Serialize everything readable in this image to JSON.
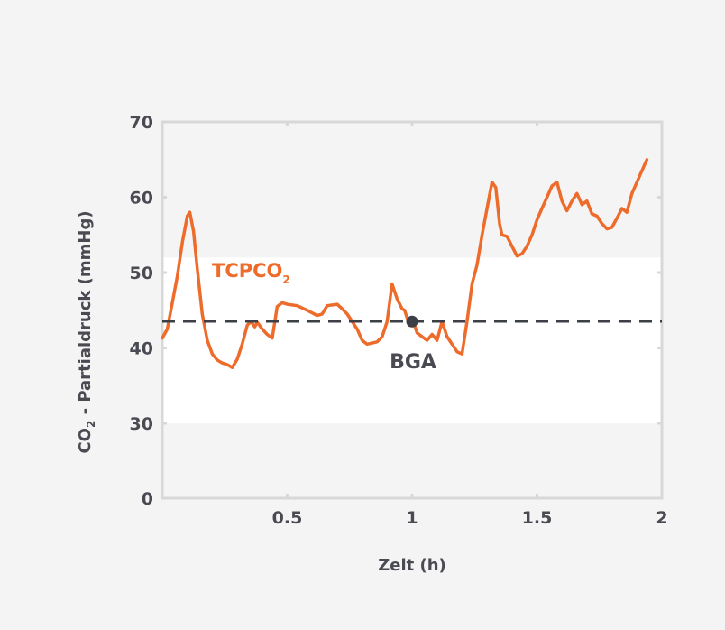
{
  "chart_data": {
    "type": "line",
    "xlabel": "Zeit (h)",
    "ylabel": {
      "prefix": "CO",
      "subscript": "2",
      "suffix": " - Partialdruck (mmHg)"
    },
    "xlim": [
      0,
      2
    ],
    "ylim_visible": [
      0,
      70
    ],
    "y_axis_break": "0 shown at bottom, scale continues linear from 30 upward",
    "x_ticks": [
      {
        "value": 0.5,
        "label": "0.5"
      },
      {
        "value": 1,
        "label": "1"
      },
      {
        "value": 1.5,
        "label": "1.5"
      },
      {
        "value": 2,
        "label": "2"
      }
    ],
    "y_ticks": [
      {
        "value": 0,
        "label": "0"
      },
      {
        "value": 30,
        "label": "30"
      },
      {
        "value": 40,
        "label": "40"
      },
      {
        "value": 50,
        "label": "50"
      },
      {
        "value": 60,
        "label": "60"
      },
      {
        "value": 70,
        "label": "70"
      }
    ],
    "normal_band": {
      "from": 30,
      "to": 52
    },
    "reference_line": {
      "value": 43.5,
      "style": "dashed"
    },
    "reference_point": {
      "x": 1.0,
      "y": 43.5,
      "label": "BGA"
    },
    "series": [
      {
        "name": {
          "prefix": "TCPCO",
          "subscript": "2"
        },
        "color": "#ee6c2b",
        "points": [
          [
            0.0,
            41.3
          ],
          [
            0.02,
            42.5
          ],
          [
            0.04,
            46
          ],
          [
            0.06,
            49.5
          ],
          [
            0.08,
            54
          ],
          [
            0.1,
            57.5
          ],
          [
            0.11,
            58.0
          ],
          [
            0.125,
            55.5
          ],
          [
            0.14,
            50.5
          ],
          [
            0.16,
            44.5
          ],
          [
            0.18,
            41
          ],
          [
            0.2,
            39.2
          ],
          [
            0.22,
            38.4
          ],
          [
            0.24,
            38.0
          ],
          [
            0.26,
            37.8
          ],
          [
            0.28,
            37.4
          ],
          [
            0.3,
            38.5
          ],
          [
            0.32,
            40.5
          ],
          [
            0.34,
            43.0
          ],
          [
            0.355,
            43.5
          ],
          [
            0.37,
            42.8
          ],
          [
            0.38,
            43.4
          ],
          [
            0.4,
            42.5
          ],
          [
            0.42,
            41.8
          ],
          [
            0.44,
            41.3
          ],
          [
            0.46,
            45.5
          ],
          [
            0.48,
            46.0
          ],
          [
            0.5,
            45.8
          ],
          [
            0.54,
            45.6
          ],
          [
            0.58,
            45.0
          ],
          [
            0.62,
            44.3
          ],
          [
            0.64,
            44.5
          ],
          [
            0.66,
            45.6
          ],
          [
            0.7,
            45.8
          ],
          [
            0.72,
            45.2
          ],
          [
            0.74,
            44.5
          ],
          [
            0.78,
            42.5
          ],
          [
            0.8,
            41.0
          ],
          [
            0.82,
            40.5
          ],
          [
            0.86,
            40.8
          ],
          [
            0.88,
            41.5
          ],
          [
            0.9,
            43.5
          ],
          [
            0.92,
            48.5
          ],
          [
            0.94,
            46.5
          ],
          [
            0.96,
            45.2
          ],
          [
            0.97,
            45.0
          ],
          [
            0.99,
            43.0
          ],
          [
            1.0,
            44.0
          ],
          [
            1.02,
            42.0
          ],
          [
            1.04,
            41.5
          ],
          [
            1.06,
            41.0
          ],
          [
            1.08,
            41.8
          ],
          [
            1.1,
            41.0
          ],
          [
            1.12,
            43.5
          ],
          [
            1.14,
            41.5
          ],
          [
            1.16,
            40.5
          ],
          [
            1.18,
            39.5
          ],
          [
            1.2,
            39.2
          ],
          [
            1.22,
            43.5
          ],
          [
            1.24,
            48.5
          ],
          [
            1.26,
            51.0
          ],
          [
            1.28,
            55.0
          ],
          [
            1.3,
            58.5
          ],
          [
            1.32,
            62.0
          ],
          [
            1.335,
            61.3
          ],
          [
            1.35,
            56.5
          ],
          [
            1.36,
            55.0
          ],
          [
            1.38,
            54.8
          ],
          [
            1.4,
            53.5
          ],
          [
            1.42,
            52.2
          ],
          [
            1.44,
            52.5
          ],
          [
            1.46,
            53.5
          ],
          [
            1.48,
            55.0
          ],
          [
            1.5,
            57.0
          ],
          [
            1.52,
            58.5
          ],
          [
            1.54,
            60.0
          ],
          [
            1.56,
            61.5
          ],
          [
            1.58,
            62.0
          ],
          [
            1.6,
            59.5
          ],
          [
            1.62,
            58.2
          ],
          [
            1.64,
            59.5
          ],
          [
            1.66,
            60.5
          ],
          [
            1.68,
            59.0
          ],
          [
            1.7,
            59.5
          ],
          [
            1.72,
            57.8
          ],
          [
            1.74,
            57.5
          ],
          [
            1.76,
            56.5
          ],
          [
            1.78,
            55.8
          ],
          [
            1.8,
            56.0
          ],
          [
            1.82,
            57.2
          ],
          [
            1.84,
            58.5
          ],
          [
            1.86,
            58.0
          ],
          [
            1.88,
            60.5
          ],
          [
            1.9,
            62.0
          ],
          [
            1.92,
            63.5
          ],
          [
            1.94,
            65.0
          ]
        ]
      }
    ],
    "colors": {
      "background": "#f4f4f4",
      "band": "#ffffff",
      "axis": "#d8d8d8",
      "series": "#ee6c2b",
      "reference": "#3d3f47",
      "text": "#4a4a52"
    }
  }
}
